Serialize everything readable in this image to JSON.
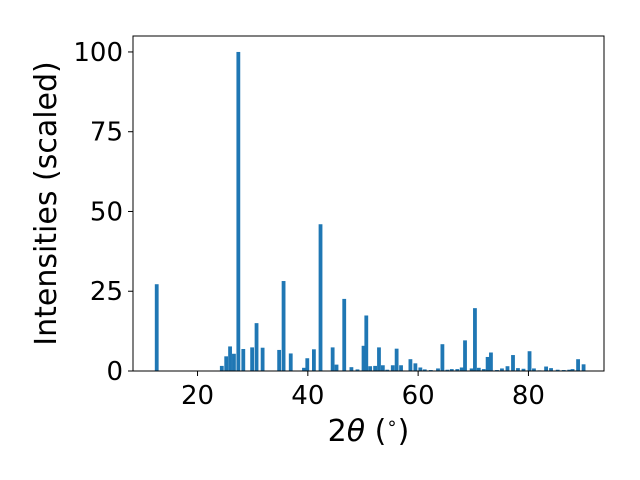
{
  "chart_data": {
    "type": "bar",
    "xlabel_prefix": "2",
    "xlabel_symbol": "θ",
    "xlabel_suffix": " (",
    "xlabel_degree": "∘",
    "xlabel_close": ")",
    "ylabel": "Intensities (scaled)",
    "xlim": [
      8.3,
      93.7
    ],
    "ylim": [
      0,
      105
    ],
    "xticks": [
      20,
      40,
      60,
      80
    ],
    "yticks": [
      0,
      25,
      50,
      75,
      100
    ],
    "grid": false,
    "bar_color": "#1f77b4",
    "x": [
      12.6,
      24.4,
      25.2,
      25.9,
      26.6,
      27.4,
      28.3,
      29.9,
      30.7,
      31.8,
      34.8,
      35.6,
      36.9,
      39.3,
      39.9,
      41.1,
      42.3,
      44.5,
      45.2,
      46.6,
      47.9,
      49.0,
      50.1,
      50.6,
      51.3,
      52.2,
      52.9,
      53.6,
      54.4,
      55.4,
      56.1,
      56.9,
      58.6,
      59.5,
      60.4,
      61.2,
      62.3,
      63.6,
      64.4,
      65.3,
      66.1,
      67.1,
      67.9,
      68.5,
      69.7,
      70.3,
      71.0,
      71.9,
      72.6,
      73.2,
      74.3,
      75.2,
      76.2,
      77.2,
      78.1,
      79.1,
      80.2,
      81.0,
      82.0,
      83.2,
      84.1,
      85.3,
      86.4,
      87.4,
      88.0,
      89.0,
      90.0
    ],
    "values": [
      27.2,
      1.6,
      4.6,
      7.7,
      5.4,
      100.0,
      6.9,
      7.4,
      15.0,
      7.3,
      6.6,
      28.2,
      5.5,
      1.0,
      4.0,
      6.8,
      46.0,
      7.4,
      2.0,
      22.6,
      1.2,
      0.5,
      7.9,
      17.4,
      1.5,
      1.6,
      7.4,
      1.8,
      0.4,
      1.8,
      7.0,
      1.8,
      3.7,
      2.4,
      1.1,
      0.5,
      0.3,
      0.8,
      8.4,
      0.4,
      0.6,
      0.6,
      1.1,
      9.6,
      0.8,
      19.7,
      1.0,
      0.6,
      4.4,
      5.8,
      0.3,
      0.8,
      1.5,
      5.0,
      0.9,
      0.7,
      6.2,
      0.8,
      0.2,
      1.4,
      0.9,
      0.4,
      0.3,
      0.4,
      0.6,
      3.7,
      2.1
    ]
  }
}
